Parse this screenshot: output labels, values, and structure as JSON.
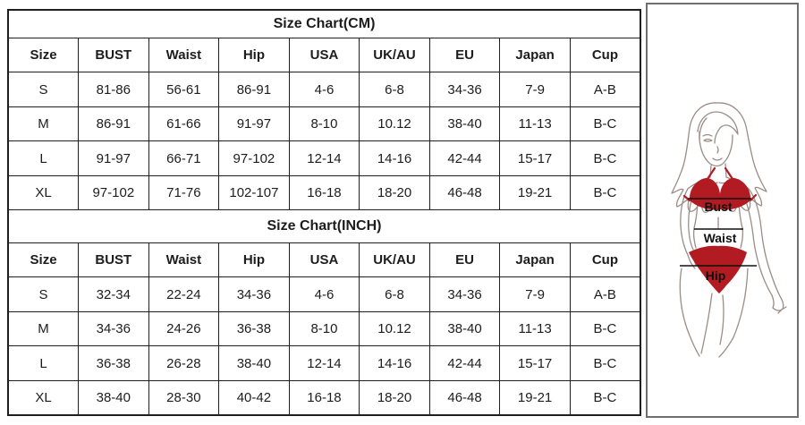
{
  "colors": {
    "background": "#ffffff",
    "table_border": "#1f1f1f",
    "panel_border": "#6e6e6e",
    "text": "#1d1d1d",
    "bikini_red": "#b11b21",
    "figure_outline": "#9b8d87",
    "measure_line": "#111111"
  },
  "tables": [
    {
      "title": "Size Chart(CM)",
      "headers": [
        "Size",
        "BUST",
        "Waist",
        "Hip",
        "USA",
        "UK/AU",
        "EU",
        "Japan",
        "Cup"
      ],
      "rows": [
        [
          "S",
          "81-86",
          "56-61",
          "86-91",
          "4-6",
          "6-8",
          "34-36",
          "7-9",
          "A-B"
        ],
        [
          "M",
          "86-91",
          "61-66",
          "91-97",
          "8-10",
          "10.12",
          "38-40",
          "11-13",
          "B-C"
        ],
        [
          "L",
          "91-97",
          "66-71",
          "97-102",
          "12-14",
          "14-16",
          "42-44",
          "15-17",
          "B-C"
        ],
        [
          "XL",
          "97-102",
          "71-76",
          "102-107",
          "16-18",
          "18-20",
          "46-48",
          "19-21",
          "B-C"
        ]
      ]
    },
    {
      "title": "Size Chart(INCH)",
      "headers": [
        "Size",
        "BUST",
        "Waist",
        "Hip",
        "USA",
        "UK/AU",
        "EU",
        "Japan",
        "Cup"
      ],
      "rows": [
        [
          "S",
          "32-34",
          "22-24",
          "34-36",
          "4-6",
          "6-8",
          "34-36",
          "7-9",
          "A-B"
        ],
        [
          "M",
          "34-36",
          "24-26",
          "36-38",
          "8-10",
          "10.12",
          "38-40",
          "11-13",
          "B-C"
        ],
        [
          "L",
          "36-38",
          "26-28",
          "38-40",
          "12-14",
          "14-16",
          "42-44",
          "15-17",
          "B-C"
        ],
        [
          "XL",
          "38-40",
          "28-30",
          "40-42",
          "16-18",
          "18-20",
          "46-48",
          "19-21",
          "B-C"
        ]
      ]
    }
  ],
  "figure": {
    "labels": {
      "bust": "Bust",
      "waist": "Waist",
      "hip": "Hip"
    }
  }
}
